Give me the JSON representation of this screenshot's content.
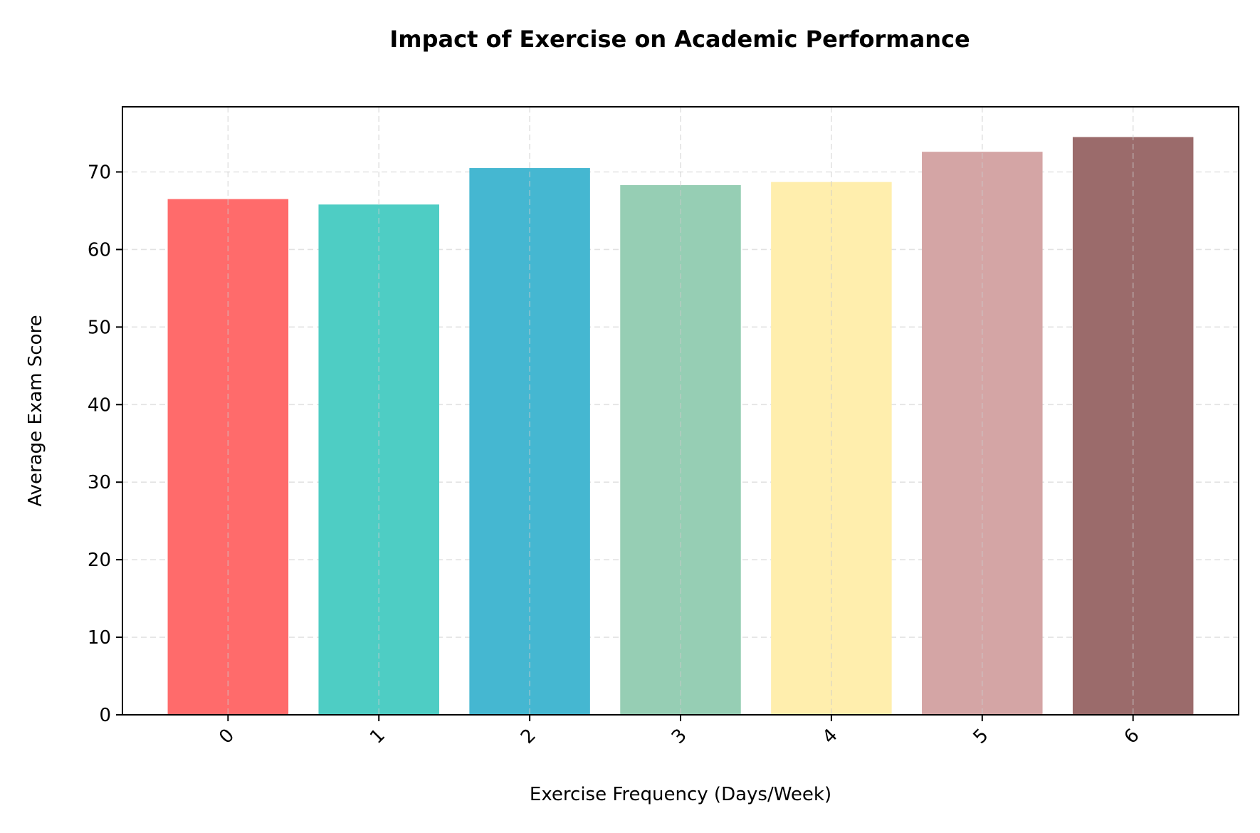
{
  "chart_data": {
    "type": "bar",
    "title": "Impact of Exercise on Academic Performance",
    "xlabel": "Exercise Frequency (Days/Week)",
    "ylabel": "Average Exam Score",
    "categories": [
      "0",
      "1",
      "2",
      "3",
      "4",
      "5",
      "6"
    ],
    "values": [
      66.5,
      65.8,
      70.5,
      68.3,
      68.7,
      72.6,
      74.5
    ],
    "colors": [
      "#FF6B6B",
      "#4ECDC4",
      "#45B7D1",
      "#96CEB4",
      "#FFEEAD",
      "#D4A5A5",
      "#9B6B6B"
    ],
    "ylim": [
      0,
      78.4
    ],
    "yticks": [
      0,
      10,
      20,
      30,
      40,
      50,
      60,
      70
    ],
    "grid": true,
    "xtick_rotation_deg": 45
  }
}
